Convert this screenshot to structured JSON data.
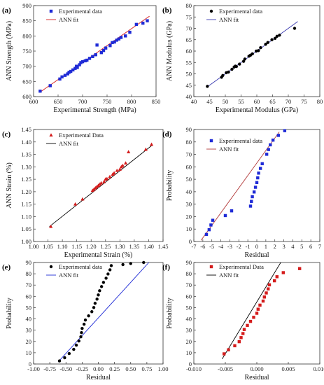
{
  "colors": {
    "blue": "#1f2bd6",
    "red": "#d41c1c",
    "black": "#000000",
    "axis": "#333333",
    "purple": "#3a3ab0",
    "darkred": "#b33a3a"
  },
  "chart_data": [
    {
      "panel": "(a)",
      "type": "scatter",
      "xlabel": "Experimental Strength (MPa)",
      "ylabel": "ANN Strength (MPa)",
      "xlim": [
        600,
        880
      ],
      "ylim": [
        600,
        900
      ],
      "xticks": [
        "600",
        "650",
        "700",
        "750",
        "800",
        "850"
      ],
      "yticks": [
        "600",
        "650",
        "700",
        "750",
        "800",
        "850",
        "900"
      ],
      "legend": [
        "Experimental data",
        "ANN fit"
      ],
      "marker": "square",
      "marker_color": "blue",
      "line_color": "red",
      "fit": [
        [
          615,
          615
        ],
        [
          865,
          865
        ]
      ],
      "x": [
        615,
        638,
        660,
        665,
        672,
        678,
        681,
        685,
        690,
        695,
        698,
        700,
        705,
        708,
        712,
        718,
        722,
        728,
        735,
        742,
        745,
        755,
        760,
        765,
        775,
        780,
        785,
        790,
        795,
        800,
        810,
        820,
        835,
        850,
        860
      ],
      "y": [
        618,
        636,
        658,
        665,
        670,
        675,
        680,
        683,
        688,
        693,
        700,
        696,
        705,
        712,
        715,
        718,
        720,
        726,
        732,
        738,
        770,
        745,
        752,
        760,
        768,
        778,
        780,
        786,
        790,
        795,
        800,
        812,
        838,
        842,
        850
      ]
    },
    {
      "panel": "(b)",
      "type": "scatter",
      "xlabel": "Experimental Modulus (GPa)",
      "ylabel": "ANN Modulus (GPa)",
      "xlim": [
        40,
        80
      ],
      "ylim": [
        40,
        80
      ],
      "xticks": [
        "40",
        "45",
        "50",
        "55",
        "60",
        "65",
        "70",
        "75",
        "80"
      ],
      "yticks": [
        "40",
        "45",
        "50",
        "55",
        "60",
        "65",
        "70",
        "75",
        "80"
      ],
      "legend": [
        "Experimental data",
        "ANN fit"
      ],
      "marker": "circle",
      "marker_color": "black",
      "line_color": "purple",
      "fit": [
        [
          44,
          44
        ],
        [
          73,
          73
        ]
      ],
      "x": [
        44.3,
        48.8,
        49.2,
        50.3,
        51.0,
        52.1,
        52.8,
        53.2,
        53.5,
        54.5,
        55.8,
        56.2,
        57.5,
        58.0,
        58.6,
        59.8,
        60.5,
        61.2,
        62.8,
        63.5,
        64.8,
        65.8,
        66.4,
        67.2,
        72.0
      ],
      "y": [
        44.5,
        48.5,
        49.3,
        50.5,
        50.8,
        52.0,
        53.0,
        53.4,
        53.2,
        54.3,
        55.5,
        56.5,
        57.8,
        58.2,
        58.8,
        60.0,
        60.2,
        61.5,
        63.0,
        63.8,
        65.0,
        65.6,
        66.5,
        67.0,
        70.0
      ]
    },
    {
      "panel": "(c)",
      "type": "scatter",
      "xlabel": "Experimental Strain (%)",
      "ylabel": "ANN Strain (%)",
      "xlim": [
        1.0,
        1.45
      ],
      "ylim": [
        1.0,
        1.45
      ],
      "xticks": [
        "1.00",
        "1.05",
        "1.10",
        "1.15",
        "1.20",
        "1.25",
        "1.30",
        "1.35",
        "1.40",
        "1.45"
      ],
      "yticks": [
        "1.00",
        "1.05",
        "1.10",
        "1.15",
        "1.20",
        "1.25",
        "1.30",
        "1.35",
        "1.40",
        "1.45"
      ],
      "legend": [
        "Experimental Data",
        "ANN fit"
      ],
      "marker": "triangle",
      "marker_color": "red",
      "line_color": "black",
      "fit": [
        [
          1.055,
          1.06
        ],
        [
          1.41,
          1.385
        ]
      ],
      "x": [
        1.06,
        1.145,
        1.17,
        1.205,
        1.21,
        1.215,
        1.22,
        1.225,
        1.23,
        1.235,
        1.245,
        1.25,
        1.255,
        1.265,
        1.275,
        1.28,
        1.29,
        1.3,
        1.305,
        1.31,
        1.32,
        1.33,
        1.39,
        1.41
      ],
      "y": [
        1.06,
        1.15,
        1.17,
        1.205,
        1.21,
        1.215,
        1.22,
        1.225,
        1.23,
        1.235,
        1.24,
        1.25,
        1.252,
        1.26,
        1.27,
        1.275,
        1.285,
        1.29,
        1.3,
        1.305,
        1.315,
        1.36,
        1.37,
        1.39
      ]
    },
    {
      "panel": "(d)",
      "type": "scatter",
      "xlabel": "Residual",
      "ylabel": "Probability",
      "xlim": [
        -7,
        7
      ],
      "ylim": [
        0,
        95
      ],
      "xticks": [
        "-7",
        "-6",
        "-5",
        "-4",
        "-3",
        "-2",
        "-1",
        "0",
        "1",
        "2",
        "3",
        "4",
        "5",
        "6",
        "7"
      ],
      "yticks": [
        "0",
        "10",
        "20",
        "30",
        "40",
        "50",
        "60",
        "70",
        "80",
        "90"
      ],
      "legend": [
        "Experimental data",
        "ANN fit"
      ],
      "marker": "square",
      "marker_color": "blue",
      "line_color": "darkred",
      "fit": [
        [
          -6.2,
          1
        ],
        [
          2.5,
          93
        ]
      ],
      "x": [
        -5.6,
        -5.3,
        -5.1,
        -4.9,
        -3.5,
        -2.8,
        -0.7,
        -0.6,
        -0.5,
        -0.3,
        -0.15,
        0,
        0.1,
        0.2,
        0.4,
        0.6,
        1.1,
        1.3,
        1.5,
        1.8,
        2.4,
        3.1
      ],
      "y": [
        6,
        10,
        14,
        18,
        22,
        26,
        30,
        34,
        38,
        42,
        46,
        50,
        54,
        58,
        62,
        66,
        74,
        78,
        82,
        86,
        90,
        94
      ]
    },
    {
      "panel": "(e)",
      "type": "scatter",
      "xlabel": "Residual",
      "ylabel": "Probability",
      "xlim": [
        -1.0,
        1.0
      ],
      "ylim": [
        0,
        97
      ],
      "xticks": [
        "-1.00",
        "-0.75",
        "-0.50",
        "-0.25",
        "0.00",
        "0.25",
        "0.50",
        "0.75",
        "1.00"
      ],
      "yticks": [
        "0",
        "10",
        "20",
        "30",
        "40",
        "50",
        "60",
        "70",
        "80",
        "90"
      ],
      "legend": [
        "Experimental data",
        "ANN fit"
      ],
      "marker": "circle",
      "marker_color": "black",
      "line_color": "blue",
      "fit": [
        [
          -0.62,
          2
        ],
        [
          0.78,
          97
        ]
      ],
      "x": [
        -0.6,
        -0.52,
        -0.45,
        -0.38,
        -0.34,
        -0.3,
        -0.27,
        -0.26,
        -0.25,
        -0.22,
        -0.2,
        -0.15,
        -0.1,
        -0.07,
        -0.05,
        -0.02,
        0,
        0.02,
        0.05,
        0.08,
        0.12,
        0.15,
        0.18,
        0.2,
        0.38,
        0.5,
        0.7
      ],
      "y": [
        3,
        6,
        10,
        14,
        18,
        22,
        26,
        30,
        34,
        38,
        42,
        46,
        50,
        54,
        58,
        62,
        66,
        70,
        74,
        78,
        82,
        86,
        90,
        94,
        95,
        96,
        97
      ]
    },
    {
      "panel": "(f)",
      "type": "scatter",
      "xlabel": "Residual",
      "ylabel": "Probability",
      "xlim": [
        -0.01,
        0.01
      ],
      "ylim": [
        0,
        100
      ],
      "xticks": [
        "-0.010",
        "-0.005",
        "0.000",
        "0.005",
        "0.010"
      ],
      "yticks": [
        "0",
        "10",
        "20",
        "30",
        "40",
        "50",
        "60",
        "70",
        "80",
        "90"
      ],
      "legend": [
        "Experimental Data",
        "ANN fit"
      ],
      "marker": "square",
      "marker_color": "red",
      "line_color": "black",
      "fit": [
        [
          -0.0055,
          5
        ],
        [
          0.0038,
          100
        ]
      ],
      "x": [
        -0.0052,
        -0.0045,
        -0.0035,
        -0.0028,
        -0.0025,
        -0.0022,
        -0.002,
        -0.0015,
        -0.001,
        -0.0005,
        0,
        0.0002,
        0.0005,
        0.001,
        0.0012,
        0.0015,
        0.0018,
        0.002,
        0.0028,
        0.0032,
        0.0042,
        0.0068
      ],
      "y": [
        10,
        14,
        18,
        22,
        26,
        30,
        34,
        38,
        42,
        46,
        50,
        54,
        58,
        62,
        66,
        70,
        74,
        78,
        82,
        86,
        90,
        94
      ]
    }
  ]
}
